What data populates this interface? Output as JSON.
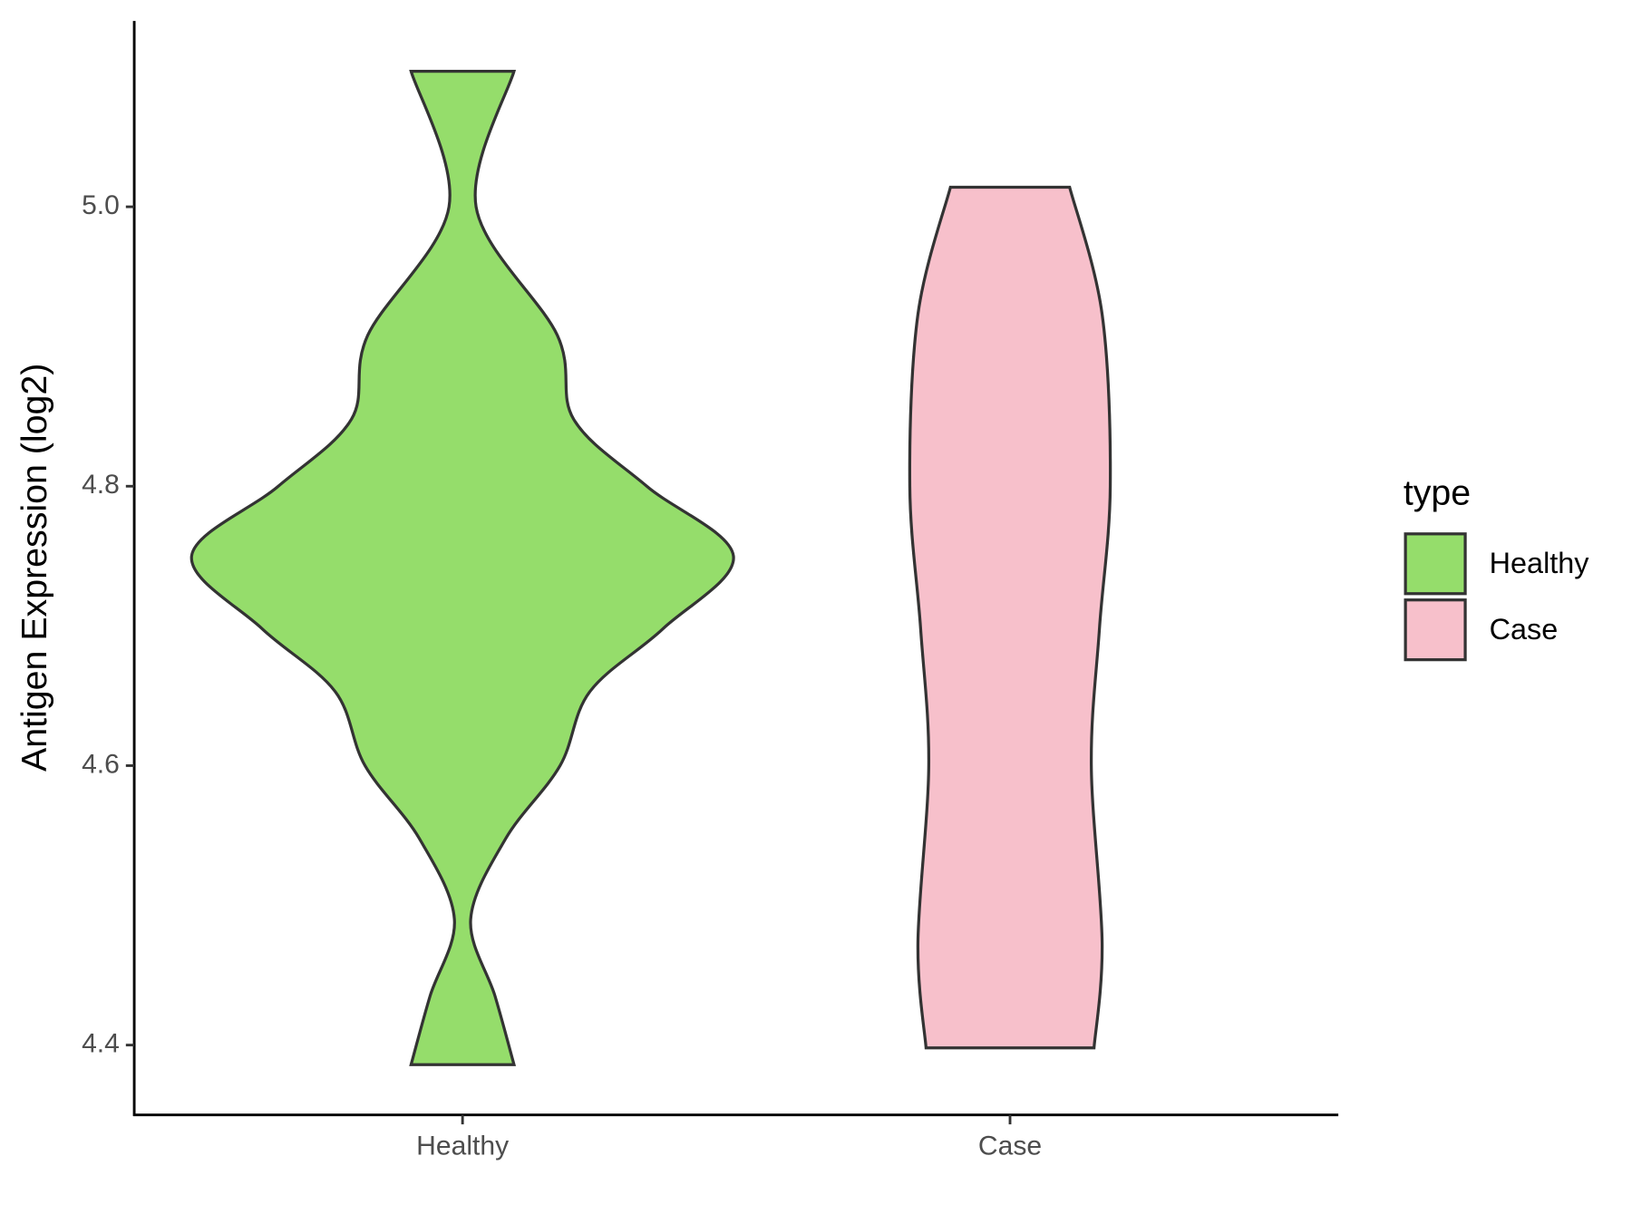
{
  "chart_data": {
    "type": "violin",
    "y_label": "Antigen Expression (log2)",
    "legend_title": "type",
    "categories": [
      "Healthy",
      "Case"
    ],
    "violins": [
      {
        "name": "Healthy",
        "color": "#95dd6b",
        "y": [
          5.097,
          5.0,
          4.908,
          4.848,
          4.8,
          4.75,
          4.698,
          4.653,
          4.6,
          4.548,
          4.49,
          4.435,
          4.386
        ],
        "width": [
          0.19,
          0.05,
          0.35,
          0.41,
          0.68,
          1.0,
          0.74,
          0.47,
          0.36,
          0.16,
          0.03,
          0.12,
          0.19
        ]
      },
      {
        "name": "Case",
        "color": "#f7c0cb",
        "y": [
          5.014,
          4.923,
          4.8,
          4.698,
          4.6,
          4.473,
          4.398
        ],
        "width": [
          0.22,
          0.34,
          0.37,
          0.33,
          0.3,
          0.34,
          0.31
        ]
      }
    ],
    "ylim": [
      4.35,
      5.133
    ],
    "yticks": [
      {
        "value": 4.4,
        "label": "4.4"
      },
      {
        "value": 4.6,
        "label": "4.6"
      },
      {
        "value": 4.8,
        "label": "4.8"
      },
      {
        "value": 5.0,
        "label": "5.0"
      }
    ],
    "legend_position": "right"
  }
}
